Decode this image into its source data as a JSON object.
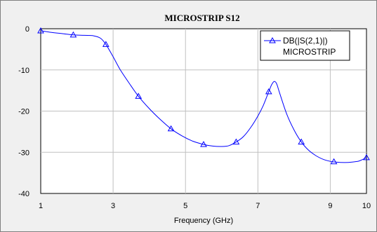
{
  "chart_data": {
    "type": "line",
    "title": "MICROSTRIP S12",
    "xlabel": "Frequency (GHz)",
    "ylabel": "",
    "xlim": [
      1,
      10
    ],
    "ylim": [
      -40,
      0
    ],
    "xticks": [
      1,
      3,
      5,
      7,
      9,
      10
    ],
    "yticks": [
      0,
      -10,
      -20,
      -30,
      -40
    ],
    "grid": true,
    "legend_position": "top-right",
    "series": [
      {
        "name": "DB(|S(2,1)|)",
        "name_line2": "MICROSTRIP",
        "color": "#0000ff",
        "marker": "triangle",
        "x": [
          1,
          1.3,
          1.6,
          1.9,
          2.2,
          2.45,
          2.65,
          2.8,
          3.0,
          3.2,
          3.45,
          3.7,
          4.0,
          4.3,
          4.6,
          4.9,
          5.2,
          5.5,
          5.75,
          6.0,
          6.2,
          6.4,
          6.6,
          6.8,
          7.0,
          7.15,
          7.3,
          7.38,
          7.45,
          7.52,
          7.6,
          7.8,
          8.0,
          8.2,
          8.4,
          8.6,
          8.8,
          9.0,
          9.15,
          9.4,
          9.6,
          9.8,
          10
        ],
        "y": [
          -0.5,
          -0.9,
          -1.2,
          -1.5,
          -1.6,
          -1.7,
          -2.3,
          -3.8,
          -6.8,
          -10.0,
          -13.3,
          -16.4,
          -19.4,
          -22.0,
          -24.3,
          -26.0,
          -27.3,
          -28.1,
          -28.5,
          -28.6,
          -28.4,
          -27.5,
          -26.2,
          -24.0,
          -21.2,
          -18.6,
          -15.3,
          -13.6,
          -12.8,
          -13.4,
          -15.6,
          -20.8,
          -24.6,
          -27.5,
          -29.5,
          -30.8,
          -31.7,
          -32.2,
          -32.4,
          -32.5,
          -32.4,
          -32.1,
          -31.3
        ],
        "markers_x": [
          1,
          1.9,
          2.8,
          3.7,
          4.6,
          5.5,
          6.4,
          7.3,
          8.2,
          9.1,
          10
        ],
        "markers_y": [
          -0.5,
          -1.5,
          -3.8,
          -16.4,
          -24.3,
          -28.1,
          -27.5,
          -15.3,
          -27.5,
          -32.3,
          -31.3
        ]
      }
    ]
  }
}
